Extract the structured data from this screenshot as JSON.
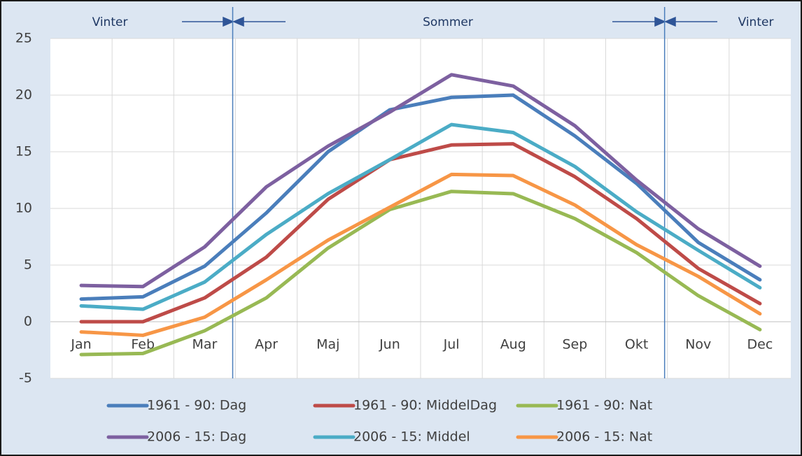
{
  "chart_data": {
    "type": "line",
    "annotations": [
      "Vinter",
      "Sommer",
      "Vinter"
    ],
    "categories": [
      "Jan",
      "Feb",
      "Mar",
      "Apr",
      "Maj",
      "Jun",
      "Jul",
      "Aug",
      "Sep",
      "Okt",
      "Nov",
      "Dec"
    ],
    "series": [
      {
        "name": "1961 - 90: Dag",
        "color": "#4a7ebb",
        "values": [
          2.0,
          2.2,
          4.9,
          9.6,
          15.0,
          18.7,
          19.8,
          20.0,
          16.4,
          12.2,
          7.0,
          3.7
        ]
      },
      {
        "name": "1961 - 90: MiddelDag",
        "color": "#be4b48",
        "values": [
          0,
          0,
          2.1,
          5.7,
          10.8,
          14.3,
          15.6,
          15.7,
          12.8,
          9.1,
          4.7,
          1.6
        ]
      },
      {
        "name": "1961 - 90: Nat",
        "color": "#98b954",
        "values": [
          -2.9,
          -2.8,
          -0.8,
          2.1,
          6.5,
          9.9,
          11.5,
          11.3,
          9.1,
          6.1,
          2.3,
          -0.7
        ]
      },
      {
        "name": "2006 - 15: Dag",
        "color": "#7d60a0",
        "values": [
          3.2,
          3.1,
          6.6,
          11.9,
          15.5,
          18.5,
          21.8,
          20.8,
          17.3,
          12.5,
          8.2,
          4.9
        ]
      },
      {
        "name": "2006 - 15: Middel",
        "color": "#4bacc6",
        "values": [
          1.4,
          1.1,
          3.5,
          7.7,
          11.3,
          14.3,
          17.4,
          16.7,
          13.7,
          9.7,
          6.3,
          3.0
        ]
      },
      {
        "name": "2006 - 15: Nat",
        "color": "#f79646",
        "values": [
          -0.9,
          -1.2,
          0.4,
          3.7,
          7.2,
          10.1,
          13.0,
          12.9,
          10.3,
          6.8,
          4.0,
          0.7
        ]
      }
    ],
    "ylim": [
      -5,
      25
    ],
    "yticks": [
      -5,
      0,
      5,
      10,
      15,
      20,
      25
    ],
    "grid": true
  }
}
